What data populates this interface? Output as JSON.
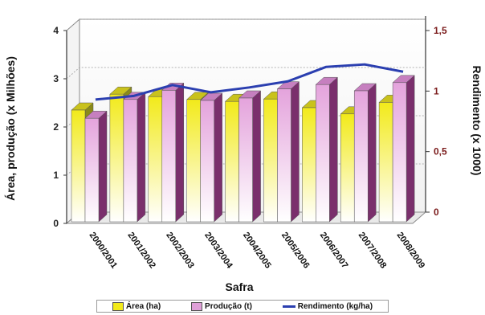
{
  "chart_data": {
    "type": "bar",
    "title": "",
    "xlabel": "Safra",
    "ylabel": "Área, produção (x Milhões)",
    "y2label": "Rendimento (x 1000)",
    "ylim": [
      0,
      4
    ],
    "y2lim": [
      0,
      1.5
    ],
    "yticks": [
      "0",
      "1",
      "2",
      "3",
      "4"
    ],
    "y2ticks": [
      "0",
      "0,5",
      "1",
      "1,5"
    ],
    "categories": [
      "2000/2001",
      "2001/2002",
      "2002/2003",
      "2003/2004",
      "2004/2005",
      "2005/2006",
      "2006/2007",
      "2007/2008",
      "2008/2009"
    ],
    "series": [
      {
        "name": "Área (ha)",
        "type": "bar",
        "axis": "left",
        "color": "#f2ea1a",
        "values": [
          2.35,
          2.68,
          2.63,
          2.57,
          2.53,
          2.58,
          2.4,
          2.27,
          2.51
        ]
      },
      {
        "name": "Produção (t)",
        "type": "bar",
        "axis": "left",
        "color": "#dfa0d8",
        "values": [
          2.18,
          2.57,
          2.76,
          2.55,
          2.6,
          2.79,
          2.88,
          2.75,
          2.92
        ]
      },
      {
        "name": "Rendimento (kg/ha)",
        "type": "line",
        "axis": "right",
        "color": "#2b3fb0",
        "values": [
          0.93,
          0.96,
          1.05,
          0.99,
          1.03,
          1.08,
          1.2,
          1.22,
          1.16
        ]
      }
    ],
    "grid": true,
    "legend_position": "bottom"
  },
  "legend": {
    "area_label": "Área (ha)",
    "producao_label": "Produção (t)",
    "rendimento_label": "Rendimento (kg/ha)"
  }
}
